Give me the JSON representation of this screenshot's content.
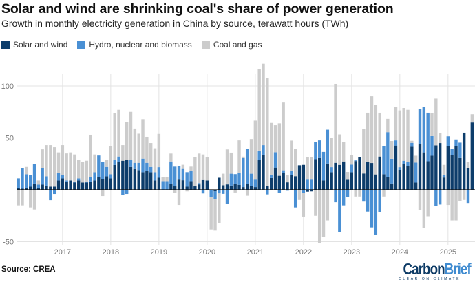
{
  "header": {
    "title": "Solar and wind are shrinking coal's share of power generation",
    "subtitle": "Growth in monthly electricity generation in China by source, terawatt hours (TWh)"
  },
  "footer": {
    "source": "Source: CREA",
    "logo": {
      "part1": "Carbon",
      "part2": "Brief",
      "tagline": "CLEAR ON CLIMATE"
    }
  },
  "chart_data": {
    "type": "bar",
    "stacked": true,
    "title": "Solar and wind are shrinking coal's share of power generation",
    "subtitle": "Growth in monthly electricity generation in China by source, terawatt hours (TWh)",
    "ylabel": "TWh",
    "ylim": [
      -55,
      125
    ],
    "yticks": [
      -50,
      50,
      100
    ],
    "ytick_labels": [
      "-50",
      "50",
      "100"
    ],
    "grid": true,
    "legend_position": "top-left",
    "start_month": "2016-02",
    "end_month": "2025-07",
    "xtick_labels": [
      "2017",
      "2018",
      "2019",
      "2020",
      "2021",
      "2022",
      "2023",
      "2024",
      "2025"
    ],
    "series": [
      {
        "name": "Solar and wind",
        "color": "#0d3d6b",
        "values": [
          2,
          1,
          2,
          3,
          6,
          2,
          5,
          4,
          3,
          3,
          9,
          11,
          8,
          9,
          7,
          9,
          7,
          7,
          8,
          9,
          12,
          10,
          13,
          11,
          24,
          27,
          28,
          29,
          22,
          20,
          19,
          17,
          18,
          17,
          9,
          11.6,
          -0.5,
          -0.5,
          5.9,
          3.3,
          9.8,
          9.2,
          3,
          8.3,
          3.3,
          5.2,
          9.4,
          9,
          0,
          -1.5,
          11.6,
          4.4,
          5.2,
          4.1,
          5.9,
          4.8,
          2.6,
          5.9,
          3.9,
          2.6,
          28.6,
          33.8,
          3.7,
          11.4,
          21.4,
          13.5,
          16.4,
          7.2,
          14,
          13.1,
          23.6,
          24,
          -1.8,
          -1.5,
          29.5,
          30.6,
          9,
          25.3,
          17,
          26,
          24,
          27.3,
          9.6,
          17,
          27.7,
          31.7,
          15.7,
          26.6,
          25.8,
          14.8,
          32,
          15,
          12,
          6.1,
          42.6,
          19.2,
          24.5,
          22.9,
          41.5,
          7,
          44.3,
          36,
          27.5,
          32.8,
          42.8,
          45,
          11.8,
          42.4,
          33.2,
          41.9,
          30.6,
          55,
          21,
          64.8
        ]
      },
      {
        "name": "Hydro, nuclear and biomass",
        "color": "#4a90d4",
        "values": [
          9,
          20,
          13,
          11,
          19,
          3,
          16,
          9,
          -10,
          -4,
          7,
          3,
          1,
          0,
          1,
          2,
          0,
          1,
          4,
          8,
          21,
          17,
          9,
          4,
          5,
          5,
          -5,
          -4,
          7,
          6,
          7,
          13,
          8,
          5,
          8,
          10.2,
          8.3,
          8.3,
          21.4,
          19,
          12.9,
          10.9,
          14,
          9.6,
          0,
          1.3,
          -3.5,
          0,
          -7.2,
          -7.2,
          -3.5,
          -3.9,
          -13.3,
          11.4,
          9.2,
          11.8,
          28,
          33.8,
          11.6,
          7.2,
          9.2,
          9.2,
          -4.4,
          2.8,
          14.8,
          -2.8,
          2.4,
          -0.9,
          3.9,
          -17,
          0,
          -2.8,
          9.8,
          9.8,
          16.4,
          17,
          27.5,
          32.6,
          4.8,
          -12,
          -40.6,
          -15,
          -7,
          7.2,
          0.7,
          0,
          -11.4,
          -21,
          -36.2,
          -43.7,
          -21.8,
          27.1,
          43.5,
          23.8,
          5,
          2.6,
          3.5,
          3.7,
          3.7,
          19.2,
          33.4,
          44,
          46.7,
          18.9,
          -15.7,
          -14.2,
          2.4,
          9.1,
          6.5,
          6.6,
          14.8,
          0,
          -12.7,
          0
        ]
      },
      {
        "name": "Coal and gas",
        "color": "#cccccc",
        "values": [
          -15,
          -15,
          7,
          -17,
          -19,
          4,
          18,
          30,
          40,
          38,
          20,
          29,
          26,
          27,
          26,
          18,
          20,
          20,
          41,
          17,
          0,
          -6,
          7,
          27,
          45,
          45,
          15,
          36,
          46,
          33,
          28,
          38,
          25,
          23,
          23,
          32,
          3.7,
          3.7,
          7.6,
          -3.3,
          -14.6,
          4,
          -1.5,
          4.4,
          28,
          28.4,
          24.6,
          22.7,
          -31,
          -30.6,
          -28.8,
          11.1,
          33.7,
          20.3,
          -2.6,
          31,
          1.3,
          -5.7,
          33.4,
          56.8,
          78.4,
          78.4,
          103.7,
          50.2,
          26,
          50.5,
          65.2,
          7.2,
          29.5,
          26.2,
          -9.8,
          -23,
          21.9,
          21.9,
          -25,
          -51.3,
          -45.2,
          -29.5,
          28,
          76,
          29.3,
          18.7,
          7.6,
          9,
          -6.5,
          -6.5,
          42.8,
          47.6,
          64.2,
          66.9,
          42.2,
          -6.5,
          12.8,
          17.1,
          32.1,
          54.6,
          50.8,
          50.4,
          2,
          6.6,
          -19.2,
          -37,
          -25.5,
          22.3,
          45,
          9.8,
          9.8,
          -14.6,
          -29.5,
          -29.5,
          -11.1,
          -9.8,
          5.9,
          7.9
        ]
      }
    ]
  }
}
